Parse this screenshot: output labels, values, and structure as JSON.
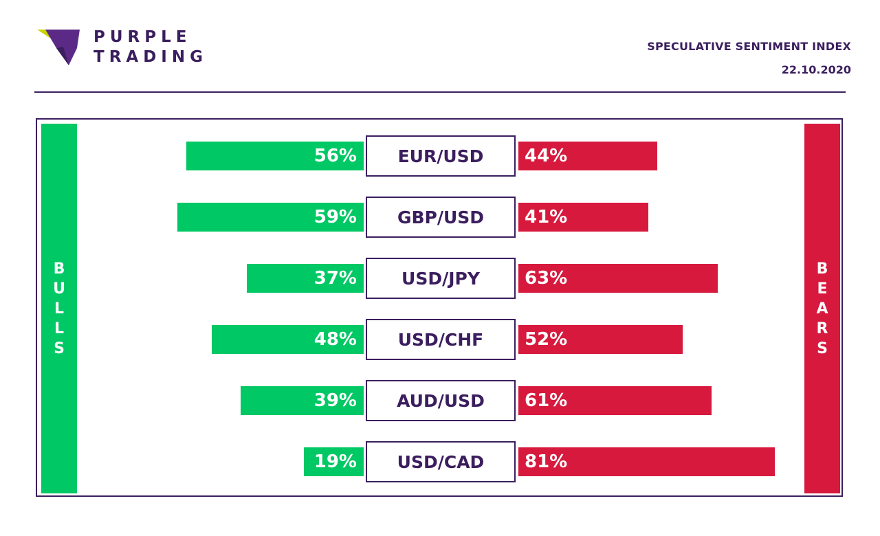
{
  "brand": {
    "line1": "PURPLE",
    "line2": "TRADING",
    "logo_icon": "purple-trading-logo-icon"
  },
  "header": {
    "title": "SPECULATIVE SENTIMENT INDEX",
    "date": "22.10.2020"
  },
  "sides": {
    "bulls": "BULLS",
    "bears": "BEARS"
  },
  "colors": {
    "brand": "#3b1e5e",
    "bulls": "#00c864",
    "bears": "#d7193e",
    "logo_accent": "#c8d400"
  },
  "chart_data": {
    "type": "bar",
    "categories": [
      "EUR/USD",
      "GBP/USD",
      "USD/JPY",
      "USD/CHF",
      "AUD/USD",
      "USD/CAD"
    ],
    "series": [
      {
        "name": "BULLS",
        "values": [
          56,
          59,
          37,
          48,
          39,
          19
        ]
      },
      {
        "name": "BEARS",
        "values": [
          44,
          41,
          63,
          52,
          61,
          81
        ]
      }
    ],
    "labels": {
      "bulls": [
        "56%",
        "59%",
        "37%",
        "48%",
        "39%",
        "19%"
      ],
      "bears": [
        "44%",
        "41%",
        "63%",
        "52%",
        "61%",
        "81%"
      ]
    },
    "unit": "%"
  }
}
